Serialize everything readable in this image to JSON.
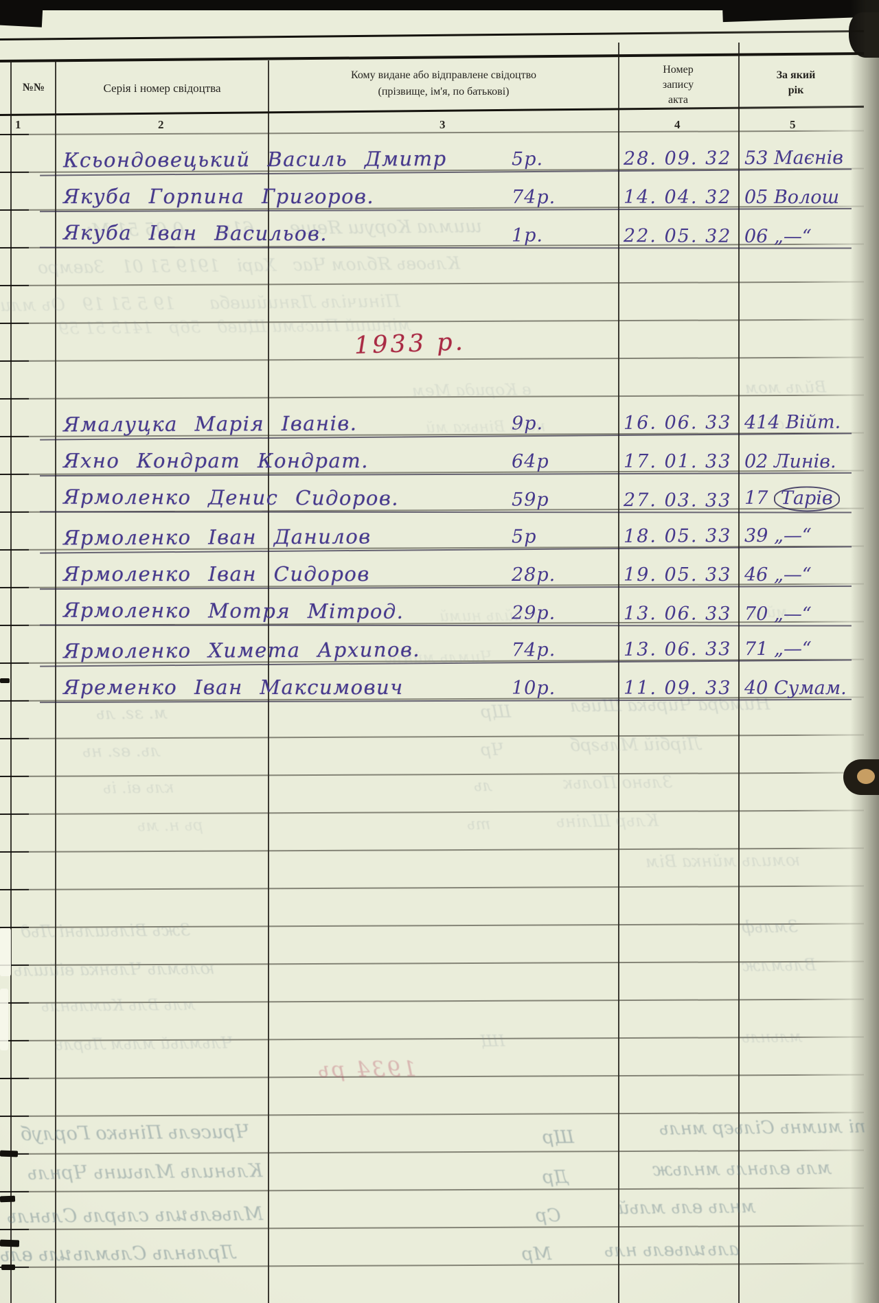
{
  "page": {
    "header": {
      "col1": "№№",
      "col2": "Серія і номер свідоцтва",
      "col3_line1": "Кому видане або відправлене свідоцтво",
      "col3_line2": "(прізвище, ім'я, по батькові)",
      "col4_lines": [
        "Номер",
        "запису",
        "акта"
      ],
      "col5_lines": [
        "За який",
        "рік"
      ],
      "col_numbers": [
        "1",
        "2",
        "3",
        "4",
        "5"
      ]
    },
    "year_heading_1933": "1933 р.",
    "entries": [
      {
        "name": "Ксьондовецький Василь Дмитр",
        "age": "5р.",
        "date": "28. 09. 32",
        "record": "53 Маєнів"
      },
      {
        "name": "Якуба Горпина Григоров.",
        "age": "74р.",
        "date": "14. 04. 32",
        "record": "05 Волош"
      },
      {
        "name": "Якуба Іван Васильов.",
        "age": "1р.",
        "date": "22. 05. 32",
        "record": "06 „—“"
      },
      {
        "name": "Ямалуцка Марія Іванів.",
        "age": "9р.",
        "date": "16. 06. 33",
        "record": "414 Війт."
      },
      {
        "name": "Яхно Кондрат Кондрат.",
        "age": "64р",
        "date": "17. 01. 33",
        "record": "02 Линів."
      },
      {
        "name": "Ярмоленко Денис Сидоров.",
        "age": "59р",
        "date": "27. 03. 33",
        "record_num": "17 ",
        "record_word": "Тарів"
      },
      {
        "name": "Ярмоленко Іван Данилов",
        "age": "5р",
        "date": "18. 05. 33",
        "record": "39 „—“"
      },
      {
        "name": "Ярмоленко Іван Сидоров",
        "age": "28р.",
        "date": "19. 05. 33",
        "record": "46 „—“"
      },
      {
        "name": "Ярмоленко Мотря Мітрод.",
        "age": "29р.",
        "date": "13. 06. 33",
        "record": "70 „—“"
      },
      {
        "name": "Ярмоленко Химета Архипов.",
        "age": "74р.",
        "date": "13. 06. 33",
        "record": "71 „—“"
      },
      {
        "name": "Яременко Іван Максимович",
        "age": "10р.",
        "date": "11. 09. 33",
        "record": "40 Сумам."
      }
    ]
  },
  "colors": {
    "paper": "#e8ebd8",
    "ink_purple": "#46398c",
    "ink_red": "#a92a44",
    "rule_black": "#16140f"
  }
}
